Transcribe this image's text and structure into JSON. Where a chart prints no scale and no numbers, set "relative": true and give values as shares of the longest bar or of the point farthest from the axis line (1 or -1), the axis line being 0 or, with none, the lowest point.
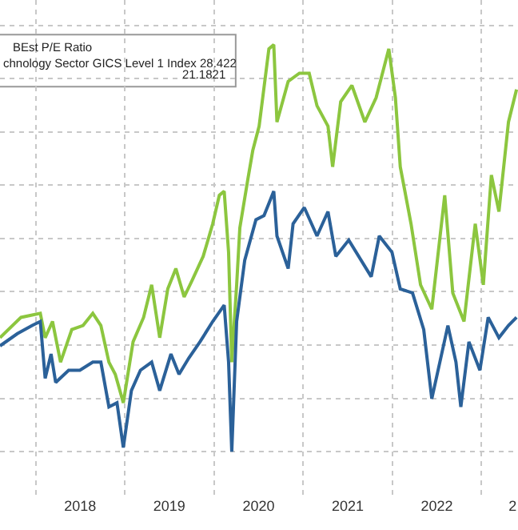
{
  "chart_data": {
    "type": "line",
    "relative": true,
    "grid": true,
    "annotations": [
      "BEst P/E Ratio",
      "chnology Sector GICS Level 1 Index 28.422",
      "21.1821"
    ],
    "xlim": [
      "2017-08-08",
      "2023-05-30"
    ],
    "xticks": [
      {
        "value": "2018-01-01",
        "label": null
      },
      {
        "value": "2018-07-02",
        "label": "2018"
      },
      {
        "value": "2019-01-01",
        "label": null
      },
      {
        "value": "2019-07-02",
        "label": "2019"
      },
      {
        "value": "2020-01-01",
        "label": null
      },
      {
        "value": "2020-07-02",
        "label": "2020"
      },
      {
        "value": "2021-01-01",
        "label": null
      },
      {
        "value": "2021-07-02",
        "label": "2021"
      },
      {
        "value": "2022-01-01",
        "label": null
      },
      {
        "value": "2022-07-02",
        "label": "2022"
      },
      {
        "value": "2023-01-01",
        "label": null
      },
      {
        "value": "2023-05-08",
        "label": "2"
      }
    ],
    "series": [
      {
        "color": "#8cc63f",
        "x": [
          "2017-08-08",
          "2017-11-02",
          "2018-01-20",
          "2018-02-09",
          "2018-03-11",
          "2018-04-13",
          "2018-05-29",
          "2018-07-14",
          "2018-08-23",
          "2018-09-25",
          "2018-10-28",
          "2018-11-23",
          "2018-12-26",
          "2019-02-04",
          "2019-03-19",
          "2019-04-21",
          "2019-05-24",
          "2019-06-26",
          "2019-07-29",
          "2019-09-01",
          "2019-10-03",
          "2019-11-18",
          "2019-12-27",
          "2020-01-23",
          "2020-02-12",
          "2020-03-01",
          "2020-03-14",
          "2020-04-03",
          "2020-04-16",
          "2020-05-19",
          "2020-06-08",
          "2020-07-04",
          "2020-08-13",
          "2020-09-02",
          "2020-09-15",
          "2020-10-31",
          "2020-12-16",
          "2021-01-25",
          "2021-02-26",
          "2021-04-12",
          "2021-05-01",
          "2021-06-03",
          "2021-07-19",
          "2021-09-10",
          "2021-10-26",
          "2021-12-17",
          "2022-01-13",
          "2022-02-02",
          "2022-03-18",
          "2022-04-26",
          "2022-06-11",
          "2022-08-03",
          "2022-09-05",
          "2022-10-21",
          "2022-12-06",
          "2023-01-08",
          "2023-02-10",
          "2023-03-13",
          "2023-04-21",
          "2023-05-24"
        ],
        "values": [
          0.28,
          0.33,
          0.34,
          0.28,
          0.32,
          0.22,
          0.3,
          0.31,
          0.34,
          0.31,
          0.22,
          0.19,
          0.12,
          0.27,
          0.33,
          0.41,
          0.28,
          0.4,
          0.45,
          0.38,
          0.42,
          0.48,
          0.56,
          0.63,
          0.64,
          0.49,
          0.22,
          0.41,
          0.55,
          0.67,
          0.74,
          0.8,
          0.99,
          1,
          0.81,
          0.91,
          0.93,
          0.93,
          0.85,
          0.8,
          0.7,
          0.86,
          0.9,
          0.81,
          0.87,
          0.99,
          0.87,
          0.7,
          0.56,
          0.41,
          0.35,
          0.63,
          0.39,
          0.32,
          0.56,
          0.41,
          0.68,
          0.59,
          0.81,
          0.89
        ]
      },
      {
        "color": "#2b6199",
        "x": [
          "2017-08-08",
          "2017-10-18",
          "2017-12-18",
          "2018-01-20",
          "2018-02-09",
          "2018-03-05",
          "2018-03-24",
          "2018-05-16",
          "2018-07-01",
          "2018-08-23",
          "2018-09-25",
          "2018-10-28",
          "2018-11-30",
          "2018-12-26",
          "2019-01-28",
          "2019-03-06",
          "2019-04-21",
          "2019-05-24",
          "2019-07-09",
          "2019-08-11",
          "2019-09-20",
          "2019-11-05",
          "2019-12-27",
          "2020-02-12",
          "2020-03-01",
          "2020-03-14",
          "2020-04-03",
          "2020-05-06",
          "2020-06-21",
          "2020-07-24",
          "2020-09-02",
          "2020-09-15",
          "2020-10-31",
          "2020-11-20",
          "2021-01-05",
          "2021-02-26",
          "2021-04-12",
          "2021-05-14",
          "2021-07-06",
          "2021-10-06",
          "2021-11-08",
          "2021-12-30",
          "2022-02-02",
          "2022-03-24",
          "2022-05-09",
          "2022-06-11",
          "2022-07-14",
          "2022-08-16",
          "2022-09-18",
          "2022-10-08",
          "2022-11-10",
          "2022-12-25",
          "2023-01-28",
          "2023-03-13",
          "2023-04-21",
          "2023-05-24"
        ],
        "values": [
          0.26,
          0.29,
          0.31,
          0.32,
          0.18,
          0.24,
          0.17,
          0.2,
          0.2,
          0.22,
          0.22,
          0.11,
          0.12,
          0.01,
          0.15,
          0.2,
          0.22,
          0.15,
          0.24,
          0.19,
          0.23,
          0.27,
          0.32,
          0.36,
          0.22,
          0,
          0.32,
          0.47,
          0.57,
          0.58,
          0.64,
          0.53,
          0.45,
          0.56,
          0.6,
          0.53,
          0.59,
          0.48,
          0.52,
          0.43,
          0.53,
          0.49,
          0.4,
          0.39,
          0.3,
          0.13,
          0.22,
          0.31,
          0.22,
          0.11,
          0.27,
          0.2,
          0.33,
          0.28,
          0.31,
          0.33
        ]
      }
    ]
  }
}
